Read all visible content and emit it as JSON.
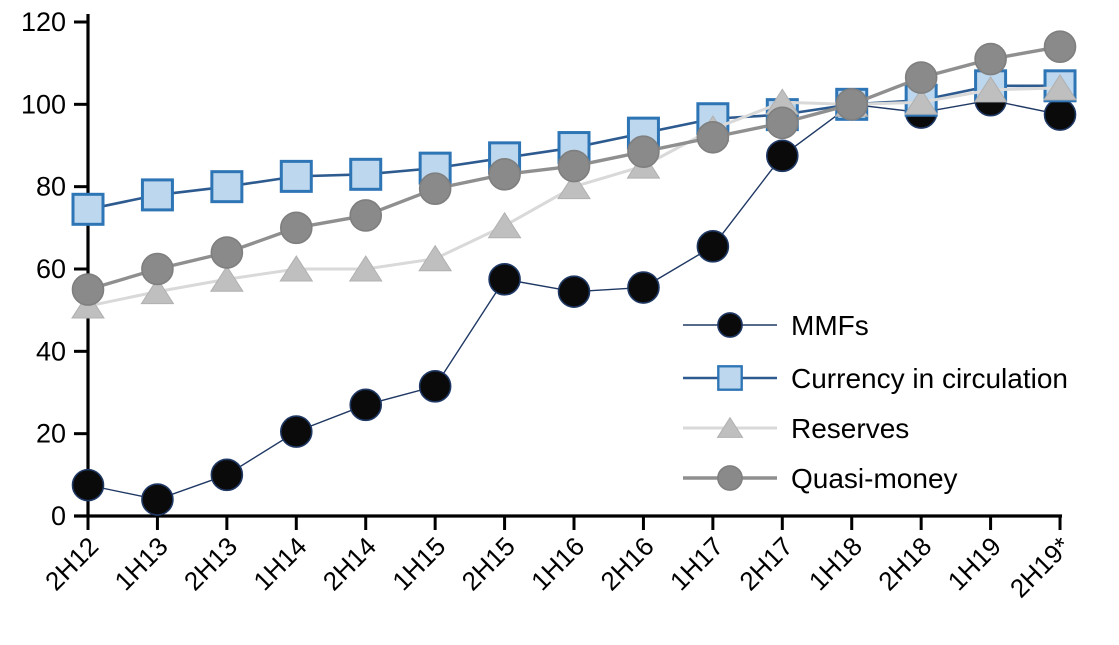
{
  "chart_data": {
    "type": "line",
    "title": "",
    "xlabel": "",
    "ylabel": "",
    "ylim": [
      0,
      120
    ],
    "y_tick_step": 20,
    "y_ticks": [
      0,
      20,
      40,
      60,
      80,
      100,
      120
    ],
    "grid": false,
    "legend_position": "inside-right",
    "axis_color": "#000000",
    "label_color": "#000000",
    "categories": [
      "2H12",
      "1H13",
      "2H13",
      "1H14",
      "2H14",
      "1H15",
      "2H15",
      "1H16",
      "2H16",
      "1H17",
      "2H17",
      "1H18",
      "2H18",
      "1H19",
      "2H19*"
    ],
    "series": [
      {
        "name": "MMFs",
        "marker": "circle",
        "marker_fill": "#0a0a0a",
        "marker_stroke": "#1f3864",
        "line_color": "#1f3864",
        "line_width": 1.4,
        "values": [
          7.5,
          4,
          10,
          20.5,
          27,
          31.5,
          57.5,
          54.5,
          55.5,
          65.5,
          87.5,
          100,
          98,
          101,
          97.5
        ]
      },
      {
        "name": "Currency in circulation",
        "marker": "square",
        "marker_fill": "#bdd7ee",
        "marker_stroke": "#2e75b6",
        "line_color": "#2e5b8f",
        "line_width": 2.6,
        "values": [
          74.5,
          78,
          80,
          82.5,
          83,
          84.5,
          87,
          89.5,
          93,
          96.5,
          97.5,
          100,
          101,
          104.5,
          104.5
        ]
      },
      {
        "name": "Reserves",
        "marker": "triangle",
        "marker_fill": "#bfbfbf",
        "marker_stroke": "#b0b0b0",
        "line_color": "#d9d9d9",
        "line_width": 3,
        "values": [
          51,
          54.5,
          57.5,
          60,
          60,
          62.5,
          70.5,
          80,
          85,
          94,
          100.5,
          100,
          100.5,
          103.5,
          104
        ]
      },
      {
        "name": "Quasi-money",
        "marker": "circle",
        "marker_fill": "#8a8a8a",
        "marker_stroke": "#7f7f7f",
        "line_color": "#8f8f8f",
        "line_width": 3.4,
        "values": [
          55,
          60,
          64,
          70,
          73,
          79.5,
          83,
          85,
          88.5,
          92,
          95.5,
          100,
          106.5,
          111,
          114
        ]
      }
    ]
  }
}
